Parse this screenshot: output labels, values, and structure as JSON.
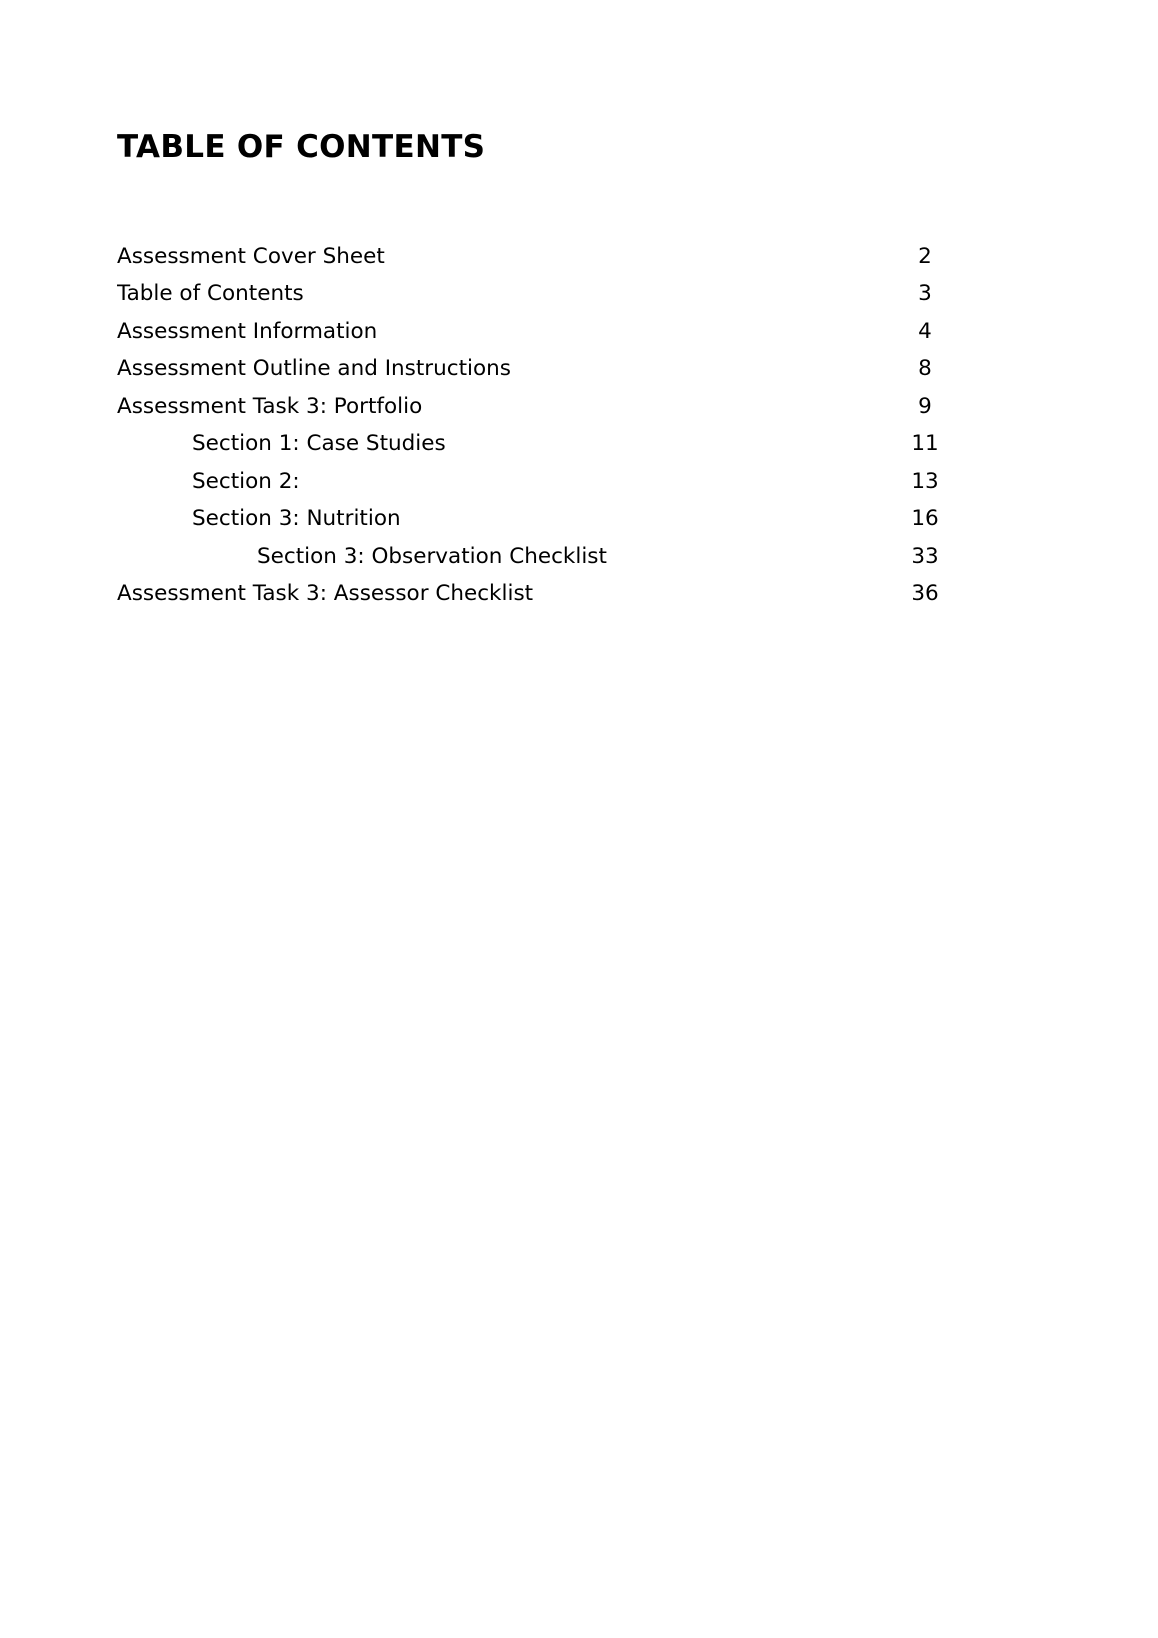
{
  "page": {
    "title": "TABLE OF CONTENTS"
  },
  "toc": {
    "entries": [
      {
        "label": "Assessment Cover Sheet",
        "page": "2",
        "indent": 0
      },
      {
        "label": "Table of Contents",
        "page": "3",
        "indent": 0
      },
      {
        "label": "Assessment Information",
        "page": "4",
        "indent": 0
      },
      {
        "label": "Assessment Outline and Instructions",
        "page": "8",
        "indent": 0
      },
      {
        "label": "Assessment Task 3: Portfolio",
        "page": "9",
        "indent": 0
      },
      {
        "label": "Section 1: Case Studies",
        "page": "11",
        "indent": 1
      },
      {
        "label": "Section 2:",
        "page": "13",
        "indent": 1
      },
      {
        "label": "Section 3: Nutrition",
        "page": "16",
        "indent": 1
      },
      {
        "label": "Section 3: Observation Checklist",
        "page": "33",
        "indent": 2
      },
      {
        "label": "Assessment Task 3: Assessor Checklist",
        "page": "36",
        "indent": 0
      }
    ]
  }
}
